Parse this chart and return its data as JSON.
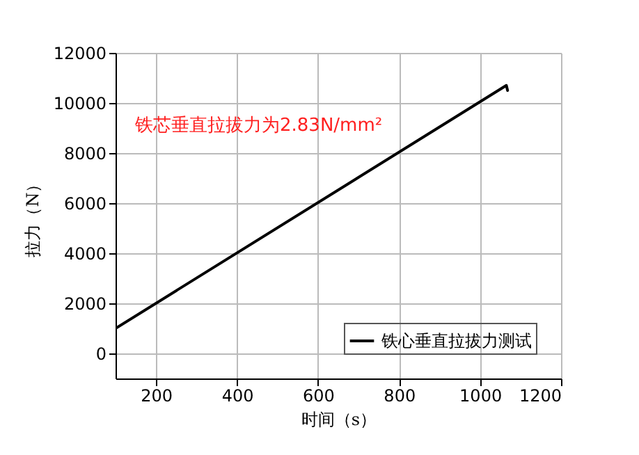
{
  "chart_data": {
    "type": "line",
    "xlabel": "时间（s）",
    "ylabel": "拉力（N）",
    "annotations": [
      "铁芯垂直拉拔力为2.83N/mm²"
    ],
    "series": [
      {
        "name": "铁心垂直拉拔力测试",
        "color": "#000000",
        "x": [
          100,
          1065,
          1068
        ],
        "values": [
          1000,
          10700,
          10500
        ]
      }
    ],
    "xlim": [
      100,
      1200
    ],
    "xticks": [
      200,
      400,
      600,
      800,
      1000,
      1200
    ],
    "ylim": [
      -1000,
      12000
    ],
    "yticks": [
      0,
      2000,
      4000,
      6000,
      8000,
      10000,
      12000
    ],
    "grid": true,
    "legend": "bottom right",
    "line_style": "solid",
    "marker": "none"
  }
}
